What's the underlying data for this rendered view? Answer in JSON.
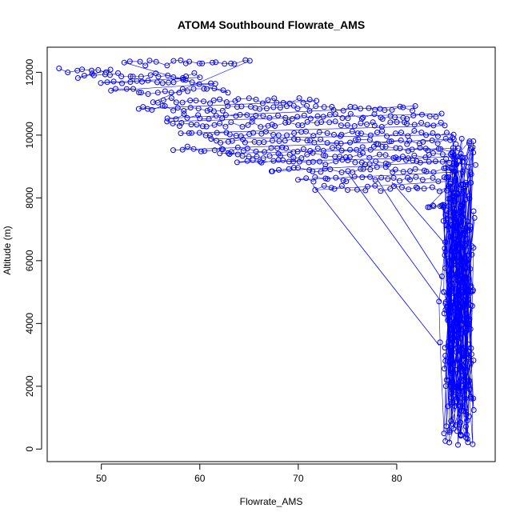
{
  "chart_data": {
    "type": "scatter",
    "title": "ATOM4 Southbound Flowrate_AMS",
    "xlabel": "Flowrate_AMS",
    "ylabel": "Altitude (m)",
    "xlim": [
      44.5,
      90
    ],
    "ylim": [
      -400,
      12800
    ],
    "x_ticks": [
      50,
      60,
      70,
      80
    ],
    "y_ticks": [
      0,
      2000,
      4000,
      6000,
      8000,
      10000,
      12000
    ],
    "x_tick_labels": [
      "50",
      "60",
      "70",
      "80"
    ],
    "y_tick_labels": [
      "0",
      "2000",
      "4000",
      "6000",
      "8000",
      "10000",
      "12000"
    ],
    "series_color": "#0000ff",
    "marker": "open-circle",
    "connected": true,
    "cruise_legs": [
      {
        "alt": 12050,
        "x0": 46.0,
        "x1": 51.0
      },
      {
        "alt": 11900,
        "x0": 47.5,
        "x1": 60.0
      },
      {
        "alt": 11700,
        "x0": 50.0,
        "x1": 61.5
      },
      {
        "alt": 11400,
        "x0": 51.0,
        "x1": 63.0
      },
      {
        "alt": 12300,
        "x0": 52.5,
        "x1": 65.0
      },
      {
        "alt": 11100,
        "x0": 55.0,
        "x1": 72.0
      },
      {
        "alt": 10850,
        "x0": 53.5,
        "x1": 82.0
      },
      {
        "alt": 10600,
        "x0": 57.0,
        "x1": 84.5
      },
      {
        "alt": 10350,
        "x0": 56.5,
        "x1": 85.0
      },
      {
        "alt": 10050,
        "x0": 58.0,
        "x1": 85.5
      },
      {
        "alt": 9800,
        "x0": 61.0,
        "x1": 86.0
      },
      {
        "alt": 9550,
        "x0": 57.5,
        "x1": 86.0
      },
      {
        "alt": 9350,
        "x0": 62.0,
        "x1": 86.5
      },
      {
        "alt": 9150,
        "x0": 64.0,
        "x1": 86.5
      },
      {
        "alt": 8900,
        "x0": 67.0,
        "x1": 86.5
      },
      {
        "alt": 8600,
        "x0": 70.0,
        "x1": 86.0
      },
      {
        "alt": 8300,
        "x0": 72.0,
        "x1": 85.0
      },
      {
        "alt": 7700,
        "x0": 83.0,
        "x1": 85.0
      }
    ],
    "profile_band": {
      "x_min": 84.5,
      "x_max": 88.0,
      "alt_min": 100,
      "alt_max": 10000
    },
    "outliers": [
      [
        84.8,
        500
      ],
      [
        84.4,
        3400
      ],
      [
        84.3,
        4700
      ],
      [
        84.6,
        5500
      ],
      [
        85.8,
        9100
      ],
      [
        88.0,
        9050
      ]
    ],
    "descent_lines": [
      [
        [
          71.5,
          8400
        ],
        [
          84.3,
          3300
        ]
      ],
      [
        [
          75.0,
          8800
        ],
        [
          84.5,
          4700
        ]
      ],
      [
        [
          78.0,
          8600
        ],
        [
          84.6,
          5400
        ]
      ],
      [
        [
          79.5,
          8500
        ],
        [
          85.0,
          6500
        ]
      ]
    ]
  }
}
